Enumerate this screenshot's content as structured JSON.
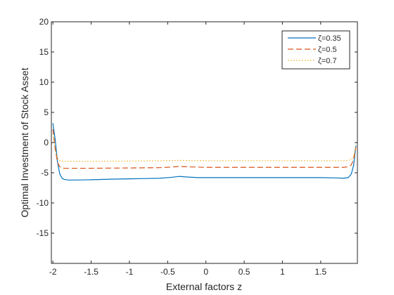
{
  "chart_data": {
    "type": "line",
    "title": "",
    "xlabel": "External factors z",
    "ylabel": "Optimal Investment of Stock Asset",
    "xlim": [
      -2.02,
      1.98
    ],
    "ylim": [
      -20,
      20
    ],
    "xticks": [
      -2,
      -1.5,
      -1,
      -0.5,
      0,
      0.5,
      1,
      1.5
    ],
    "xtick_labels": [
      "-2",
      "-1.5",
      "-1",
      "-0.5",
      "0",
      "0.5",
      "1",
      "1.5"
    ],
    "yticks": [
      20,
      15,
      10,
      5,
      0,
      -5,
      -10,
      -15
    ],
    "ytick_labels": [
      "20",
      "15",
      "10",
      "5",
      "0",
      "-5",
      "-10",
      "-15"
    ],
    "grid": false,
    "legend_position": "top-right",
    "series": [
      {
        "name": "ζ=0.35",
        "color": "#0072BD",
        "dash": "solid",
        "x": [
          -2.0,
          -1.97,
          -1.94,
          -1.91,
          -1.88,
          -1.85,
          -1.8,
          -1.7,
          -1.5,
          -1.2,
          -1.0,
          -0.8,
          -0.6,
          -0.45,
          -0.35,
          -0.25,
          -0.1,
          0.2,
          0.5,
          1.0,
          1.5,
          1.7,
          1.8,
          1.86,
          1.9,
          1.93,
          1.96
        ],
        "values": [
          3.2,
          0.5,
          -3.2,
          -5.2,
          -5.9,
          -6.1,
          -6.2,
          -6.2,
          -6.15,
          -6.05,
          -6.0,
          -5.95,
          -5.9,
          -5.75,
          -5.6,
          -5.7,
          -5.8,
          -5.8,
          -5.8,
          -5.8,
          -5.8,
          -5.85,
          -5.9,
          -5.8,
          -5.2,
          -3.8,
          -0.5
        ]
      },
      {
        "name": "ζ=0.5",
        "color": "#D95319",
        "dash": "dashed",
        "x": [
          -2.0,
          -1.97,
          -1.94,
          -1.91,
          -1.88,
          -1.85,
          -1.8,
          -1.5,
          -1.0,
          -0.6,
          -0.45,
          -0.35,
          -0.25,
          0.0,
          0.5,
          1.0,
          1.5,
          1.8,
          1.86,
          1.9,
          1.93,
          1.96
        ],
        "values": [
          2.2,
          -1.0,
          -3.3,
          -4.0,
          -4.2,
          -4.25,
          -4.25,
          -4.25,
          -4.2,
          -4.15,
          -4.05,
          -3.95,
          -4.0,
          -4.1,
          -4.1,
          -4.1,
          -4.1,
          -4.1,
          -4.0,
          -3.7,
          -2.8,
          -0.8
        ]
      },
      {
        "name": "ζ=0.7",
        "color": "#EDB120",
        "dash": "dotted",
        "x": [
          -2.0,
          -1.97,
          -1.94,
          -1.91,
          -1.88,
          -1.85,
          -1.8,
          -1.5,
          -1.0,
          -0.5,
          -0.35,
          -0.2,
          0.0,
          0.5,
          1.0,
          1.5,
          1.8,
          1.86,
          1.9,
          1.93,
          1.96
        ],
        "values": [
          1.5,
          -1.3,
          -2.6,
          -3.0,
          -3.1,
          -3.1,
          -3.1,
          -3.1,
          -3.05,
          -3.0,
          -2.95,
          -2.98,
          -3.0,
          -3.0,
          -3.0,
          -3.0,
          -3.0,
          -2.95,
          -2.8,
          -2.3,
          -0.5
        ]
      }
    ]
  }
}
